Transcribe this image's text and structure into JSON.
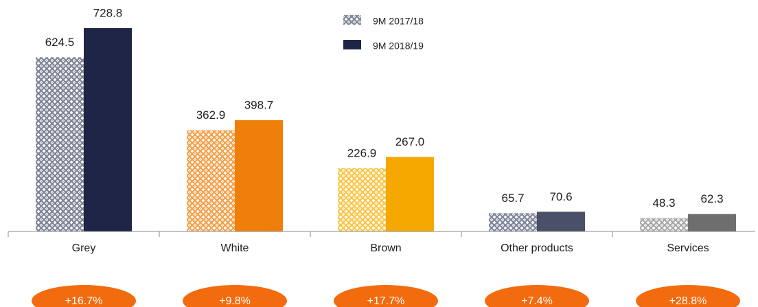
{
  "chart_data": {
    "type": "bar",
    "categories": [
      "Grey",
      "White",
      "Brown",
      "Other products",
      "Services"
    ],
    "series": [
      {
        "name": "9M 2017/18",
        "colors": [
          "#7d8294",
          "#f4a04a",
          "#f7c64a",
          "#7d849a",
          "#a8a8a8"
        ],
        "values": [
          624.5,
          362.9,
          226.9,
          65.7,
          48.3
        ],
        "value_labels": [
          "624.5",
          "362.9",
          "226.9",
          "65.7",
          "48.3"
        ]
      },
      {
        "name": "9M 2018/19",
        "colors": [
          "#1f2547",
          "#f07f0a",
          "#f5a800",
          "#4a5068",
          "#6e6e6e"
        ],
        "values": [
          728.8,
          398.7,
          267.0,
          70.6,
          62.3
        ],
        "value_labels": [
          "728.8",
          "398.7",
          "267.0",
          "70.6",
          "62.3"
        ]
      }
    ],
    "growth_labels": [
      "+16.7%",
      "+9.8%",
      "+17.7%",
      "+7.4%",
      "+28.8%"
    ],
    "growth_color": "#f26b0f",
    "ylim": [
      0,
      800
    ]
  }
}
